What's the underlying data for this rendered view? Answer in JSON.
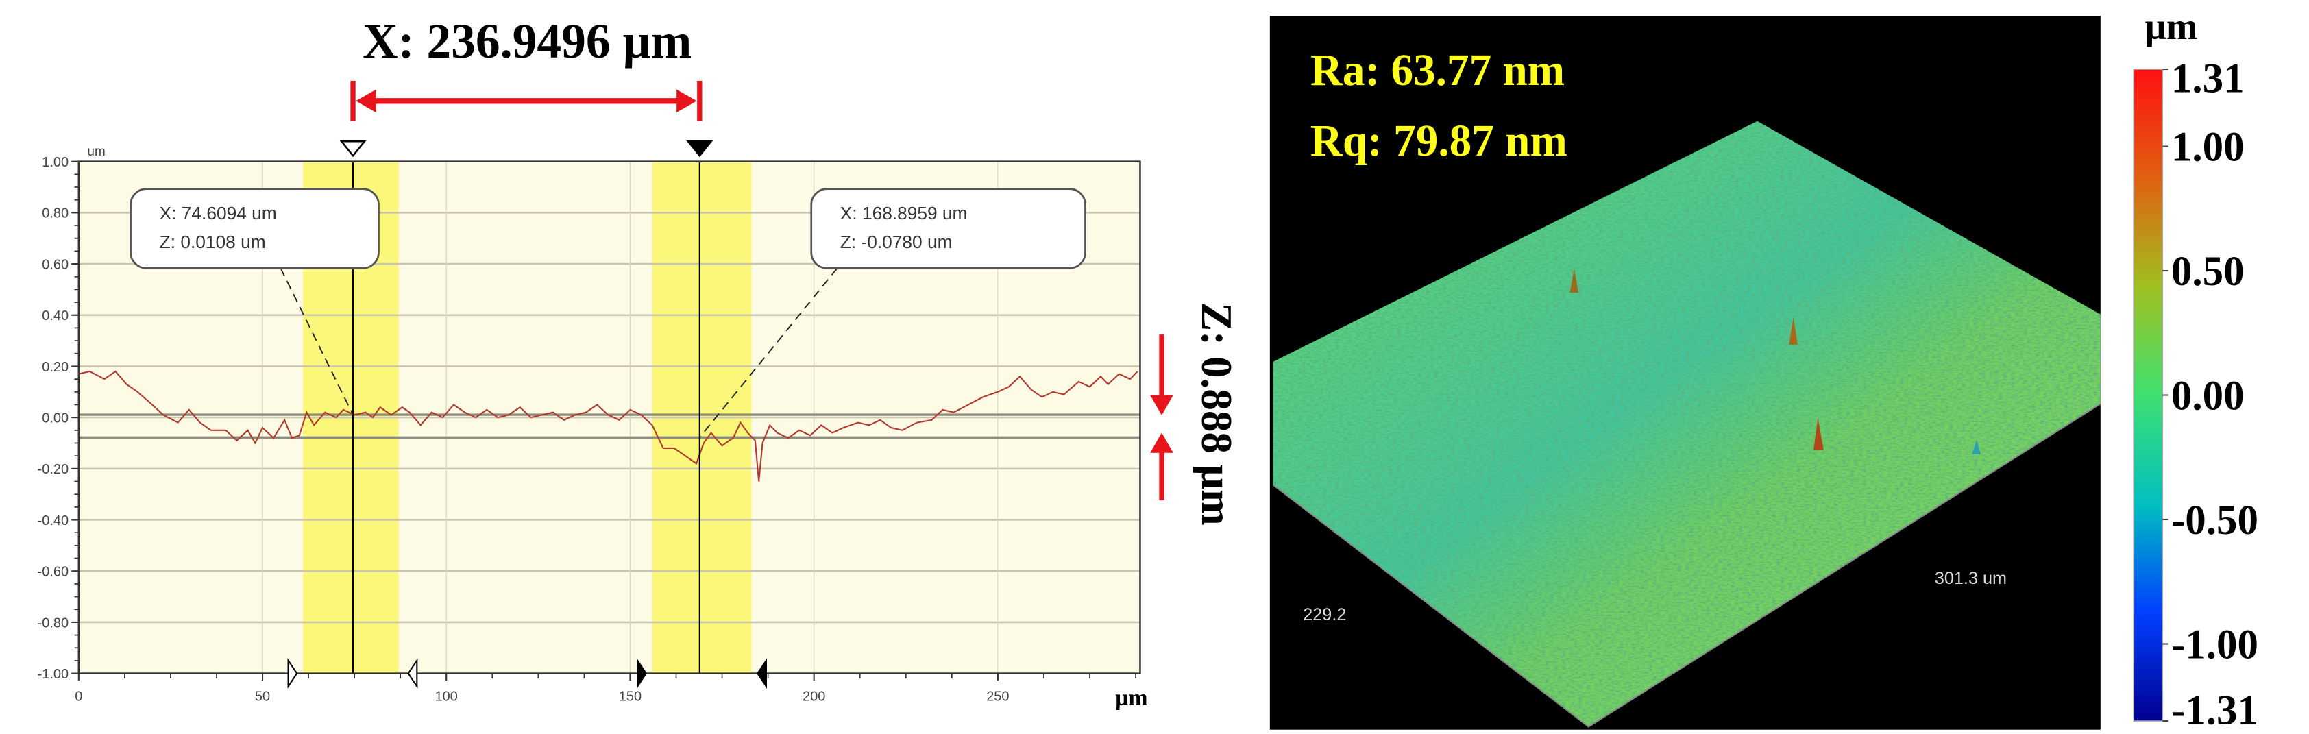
{
  "chart_data": [
    {
      "type": "line",
      "title": "X: 236.9496 µm",
      "xlabel": "µm",
      "ylabel": "um",
      "xlim": [
        0,
        288.7
      ],
      "ylim": [
        -1.0,
        1.0
      ],
      "grid": true,
      "x_ticks": [
        0,
        50,
        100,
        150,
        200,
        250
      ],
      "x_tick_labels": [
        "0",
        "50",
        "100",
        "150",
        "200",
        "250"
      ],
      "y_ticks": [
        1.0,
        0.8,
        0.6,
        0.4,
        0.2,
        0.0,
        -0.2,
        -0.4,
        -0.6,
        -0.8,
        -1.0
      ],
      "y_tick_labels": [
        "1.00",
        "0.80",
        "0.60",
        "0.40",
        "0.20",
        "0.00",
        "-0.20",
        "-0.40",
        "-0.60",
        "-0.80",
        "-1.00"
      ],
      "series": [
        {
          "color": "#b03a2e",
          "x": [
            0,
            3,
            7,
            10,
            13,
            16,
            20,
            23,
            27,
            30,
            33,
            36,
            40,
            43,
            46,
            48,
            50,
            53,
            56,
            58,
            60,
            62,
            64,
            67,
            70,
            72,
            75,
            78,
            80,
            82,
            85,
            88,
            90,
            93,
            96,
            99,
            102,
            105,
            108,
            111,
            114,
            117,
            120,
            123,
            126,
            129,
            132,
            135,
            138,
            141,
            144,
            147,
            150,
            153,
            156,
            159,
            162,
            165,
            168,
            170,
            172,
            175,
            178,
            180,
            182,
            184,
            185,
            186,
            188,
            190,
            193,
            196,
            199,
            202,
            205,
            208,
            212,
            215,
            218,
            221,
            224,
            228,
            232,
            235,
            238,
            242,
            246,
            250,
            253,
            256,
            259,
            262,
            265,
            268,
            272,
            275,
            278,
            280,
            283,
            286,
            288
          ],
          "y": [
            0.17,
            0.18,
            0.15,
            0.18,
            0.13,
            0.1,
            0.05,
            0.01,
            -0.02,
            0.03,
            -0.02,
            -0.05,
            -0.05,
            -0.09,
            -0.05,
            -0.1,
            -0.04,
            -0.08,
            -0.01,
            -0.08,
            -0.07,
            0.02,
            -0.03,
            0.02,
            0.0,
            0.03,
            0.01,
            0.02,
            0.0,
            0.04,
            0.01,
            0.04,
            0.02,
            -0.03,
            0.02,
            0.0,
            0.05,
            0.02,
            0.0,
            0.03,
            0.0,
            0.01,
            0.04,
            0.0,
            0.01,
            0.02,
            -0.01,
            0.01,
            0.02,
            0.05,
            0.01,
            -0.01,
            0.03,
            0.01,
            -0.03,
            -0.12,
            -0.12,
            -0.15,
            -0.18,
            -0.1,
            -0.06,
            -0.11,
            -0.08,
            -0.02,
            -0.06,
            -0.09,
            -0.25,
            -0.1,
            -0.03,
            -0.06,
            -0.08,
            -0.05,
            -0.07,
            -0.03,
            -0.06,
            -0.04,
            -0.02,
            -0.03,
            -0.01,
            -0.04,
            -0.05,
            -0.02,
            -0.01,
            0.03,
            0.02,
            0.05,
            0.08,
            0.1,
            0.12,
            0.16,
            0.11,
            0.08,
            0.1,
            0.09,
            0.14,
            0.12,
            0.16,
            0.13,
            0.17,
            0.15,
            0.18
          ]
        }
      ],
      "reference_lines": [
        0.0108,
        -0.078
      ],
      "highlight_bands": [
        [
          61,
          87
        ],
        [
          156,
          183
        ]
      ],
      "range_markers": [
        57,
        92,
        152,
        187
      ],
      "cursors": [
        {
          "x": 74.6094,
          "label_x": "X: 74.6094 um",
          "label_z": "Z: 0.0108 um",
          "style": "hollow"
        },
        {
          "x": 168.8959,
          "label_x": "X: 168.8959 um",
          "label_z": "Z: -0.0780 um",
          "style": "filled"
        }
      ],
      "height_annotation": "Z: 0.888 µm",
      "colors": {
        "band": "#fbf77a",
        "plot_bg": "#fdfbe6",
        "arrow": "#e8141b",
        "grid": "#c9c6b0"
      }
    },
    {
      "type": "heatmap",
      "view": "3d-surface",
      "Ra": "Ra: 63.77 nm",
      "Rq": "Rq: 79.87 nm",
      "axis_label_left": "229.2",
      "axis_label_right": "301.3 um",
      "colorbar": {
        "unit": "µm",
        "range": [
          -1.31,
          1.31
        ],
        "ticks": [
          1.31,
          1.0,
          0.5,
          0.0,
          -0.5,
          -1.0,
          -1.31
        ],
        "tick_labels": [
          "1.31",
          "1.00",
          "0.50",
          "0.00",
          "-0.50",
          "-1.00",
          "-1.31"
        ],
        "colors": [
          "#00008f",
          "#0040ff",
          "#00c0c0",
          "#3ee070",
          "#a0c020",
          "#e06010",
          "#ff1010"
        ]
      },
      "colors": {
        "background": "#000000",
        "stats_text": "#ffff1a",
        "surface": "#5cd068"
      }
    }
  ]
}
